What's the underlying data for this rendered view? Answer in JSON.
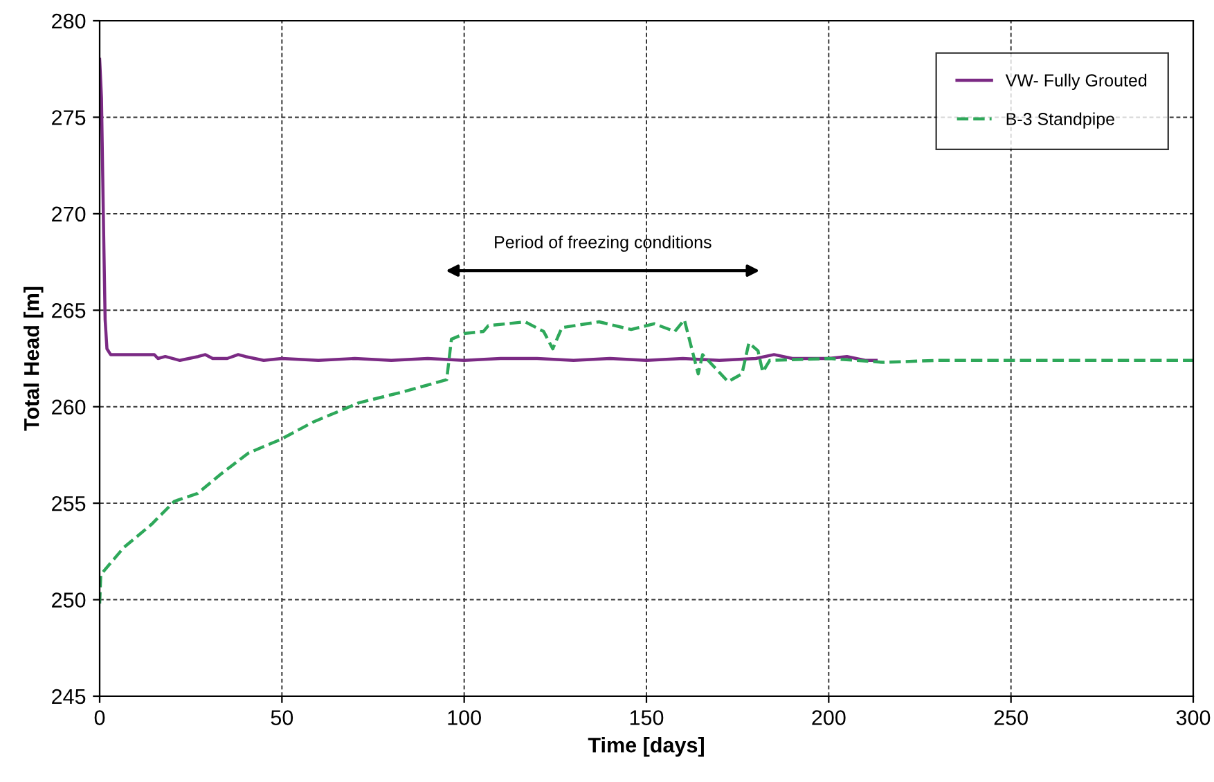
{
  "chart_data": {
    "type": "line",
    "xlabel": "Time [days]",
    "ylabel": "Total Head [m]",
    "xlim": [
      0,
      300
    ],
    "ylim": [
      245,
      280
    ],
    "xticks": [
      0,
      50,
      100,
      150,
      200,
      250,
      300
    ],
    "yticks": [
      245,
      250,
      255,
      260,
      265,
      270,
      275,
      280
    ],
    "grid": true,
    "legend": "top right",
    "annotations": [
      "Period of freezing conditions"
    ],
    "series": [
      {
        "name": "VW- Fully Grouted",
        "color": "#7b2a84",
        "line_style": "solid",
        "x": [
          0,
          0.5,
          1,
          1.5,
          2,
          3,
          10,
          15,
          16,
          18,
          22,
          27,
          29,
          31,
          35,
          38,
          40,
          45,
          50,
          60,
          70,
          80,
          90,
          100,
          110,
          120,
          130,
          140,
          150,
          160,
          170,
          180,
          185,
          190,
          200,
          205,
          210,
          213
        ],
        "values": [
          278,
          276,
          270,
          264.5,
          263,
          262.7,
          262.7,
          262.7,
          262.5,
          262.6,
          262.4,
          262.6,
          262.7,
          262.5,
          262.5,
          262.7,
          262.6,
          262.4,
          262.5,
          262.4,
          262.5,
          262.4,
          262.5,
          262.4,
          262.5,
          262.5,
          262.4,
          262.5,
          262.4,
          262.5,
          262.4,
          262.5,
          262.7,
          262.5,
          262.5,
          262.6,
          262.4,
          262.4
        ]
      },
      {
        "name": "B-3 Standpipe",
        "color": "#2ea85a",
        "line_style": "dashed",
        "x": [
          0,
          0.3,
          6.6,
          14.2,
          20.5,
          26.8,
          33.2,
          40.8,
          49.6,
          58.5,
          71.1,
          83.8,
          95.2,
          96.5,
          100.3,
          105.3,
          106.6,
          116.7,
          121.8,
          124.3,
          126.8,
          137,
          145.8,
          152.1,
          157.8,
          160.4,
          164.2,
          165.4,
          172.4,
          176.2,
          178.1,
          180.6,
          181.9,
          183.8,
          200.2,
          214.8,
          230,
          250,
          270,
          290,
          300
        ],
        "values": [
          249.8,
          251.3,
          252.7,
          253.9,
          255.1,
          255.5,
          256.5,
          257.6,
          258.3,
          259.2,
          260.2,
          260.8,
          261.4,
          263.5,
          263.8,
          263.9,
          264.2,
          264.4,
          263.9,
          263,
          264.1,
          264.4,
          264,
          264.3,
          263.9,
          264.5,
          261.7,
          262.7,
          261.3,
          261.7,
          263.3,
          262.9,
          261.8,
          262.4,
          262.5,
          262.3,
          262.4,
          262.4,
          262.4,
          262.4,
          262.4
        ]
      }
    ]
  }
}
